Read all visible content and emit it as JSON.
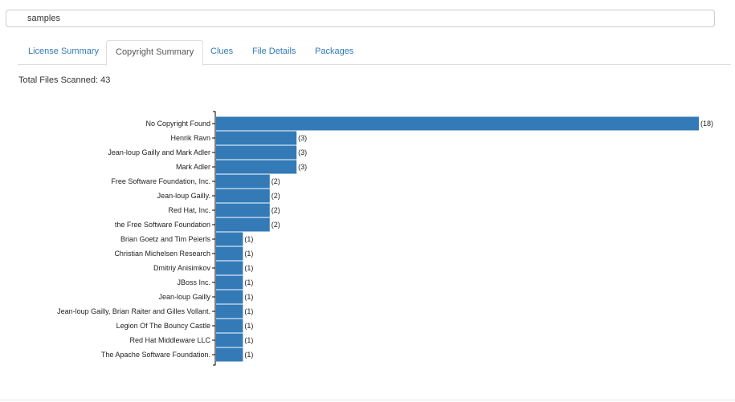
{
  "search": {
    "value": "samples"
  },
  "tabs": [
    {
      "label": "License Summary",
      "active": false
    },
    {
      "label": "Copyright Summary",
      "active": true
    },
    {
      "label": "Clues",
      "active": false
    },
    {
      "label": "File Details",
      "active": false
    },
    {
      "label": "Packages",
      "active": false
    }
  ],
  "summary": {
    "total_files": "Total Files Scanned: 43"
  },
  "colors": {
    "bar": "#337ab7",
    "link": "#337ab7"
  },
  "chart_data": {
    "type": "bar",
    "orientation": "horizontal",
    "categories": [
      "No Copyright Found",
      "Henrik Ravn",
      "Jean-loup Gailly and Mark Adler",
      "Mark Adler",
      "Free Software Foundation, Inc.",
      "Jean-loup Gailly.",
      "Red Hat, Inc.",
      "the Free Software Foundation",
      "Brian Goetz and Tim Peierls",
      "Christian Michelsen Research",
      "Dmitriy Anisimkov",
      "JBoss Inc.",
      "Jean-loup Gailly",
      "Jean-loup Gailly, Brian Raiter and Gilles Vollant.",
      "Legion Of The Bouncy Castle",
      "Red Hat Middleware LLC",
      "The Apache Software Foundation."
    ],
    "values": [
      18,
      3,
      3,
      3,
      2,
      2,
      2,
      2,
      1,
      1,
      1,
      1,
      1,
      1,
      1,
      1,
      1
    ],
    "value_labels": [
      "(18)",
      "(3)",
      "(3)",
      "(3)",
      "(2)",
      "(2)",
      "(2)",
      "(2)",
      "(1)",
      "(1)",
      "(1)",
      "(1)",
      "(1)",
      "(1)",
      "(1)",
      "(1)",
      "(1)"
    ],
    "xlim": [
      0,
      18
    ]
  }
}
